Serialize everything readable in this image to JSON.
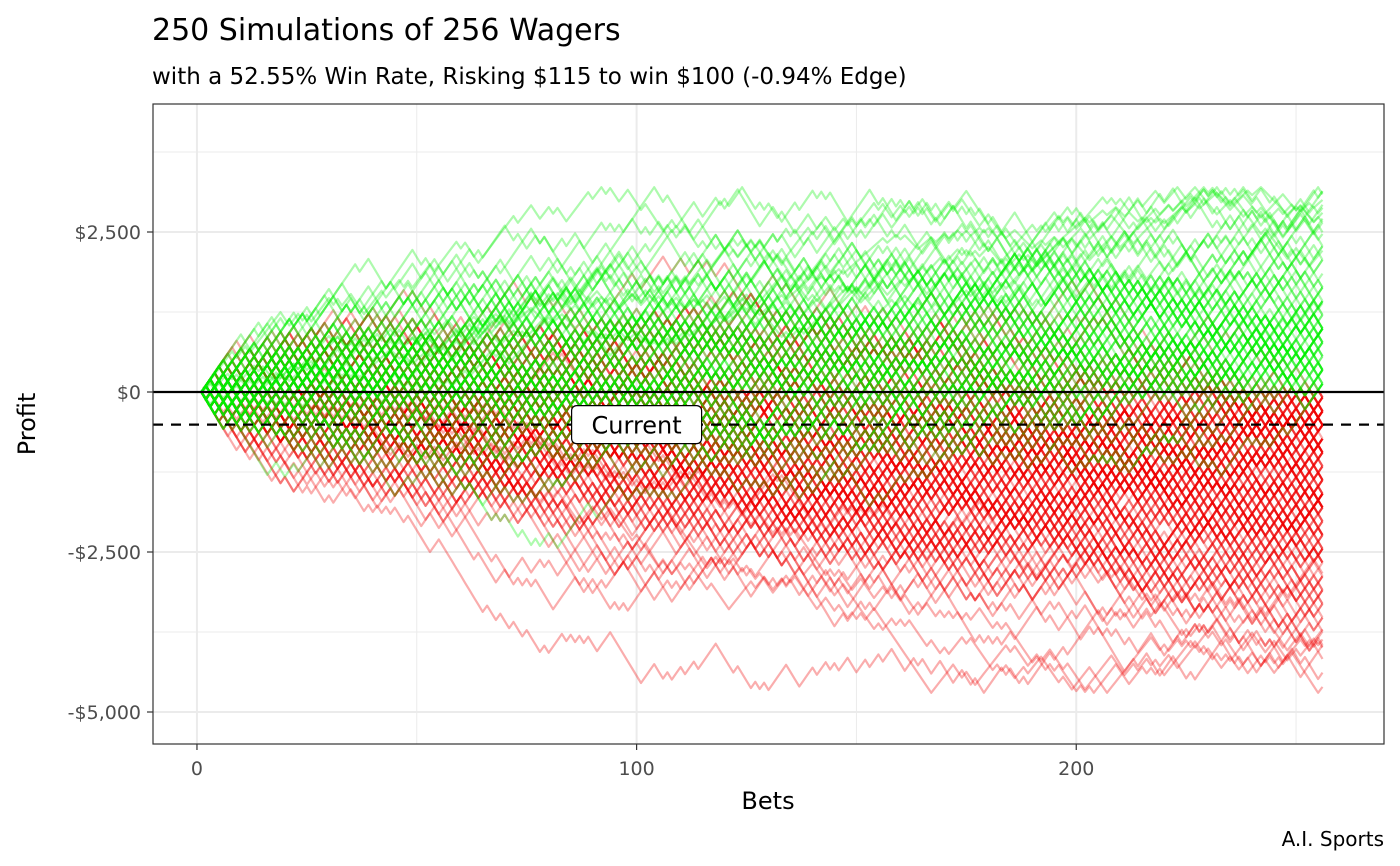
{
  "chart_data": {
    "type": "line",
    "title": "250 Simulations of 256 Wagers",
    "subtitle": "with a 52.55% Win Rate, Risking $115 to win $100  (-0.94% Edge)",
    "caption": "A.I. Sports",
    "xlabel": "Bets",
    "ylabel": "Profit",
    "xlim": [
      -10,
      270
    ],
    "ylim": [
      -5500,
      4500
    ],
    "x_ticks": [
      0,
      100,
      200
    ],
    "x_tick_labels": [
      "0",
      "100",
      "200"
    ],
    "y_ticks": [
      2500,
      0,
      -2500,
      -5000
    ],
    "y_tick_labels": [
      "$2,500",
      "$0",
      "-$2,500",
      "-$5,000"
    ],
    "grid": true,
    "num_simulations": 250,
    "num_wagers": 256,
    "win_amount": 100,
    "risk_amount": 115,
    "win_rate": 0.5255,
    "reference_lines": [
      {
        "name": "zero",
        "y": 0,
        "style": "solid"
      },
      {
        "name": "current",
        "y": -510,
        "style": "dashed"
      }
    ],
    "annotation": {
      "text": "Current",
      "x": 100,
      "y": -510
    },
    "colors": {
      "positive": "#00ee00",
      "negative": "#ee0000",
      "axis": "#333333",
      "grid": "#ebebeb"
    },
    "final_profit_range": [
      -4700,
      3200
    ]
  }
}
